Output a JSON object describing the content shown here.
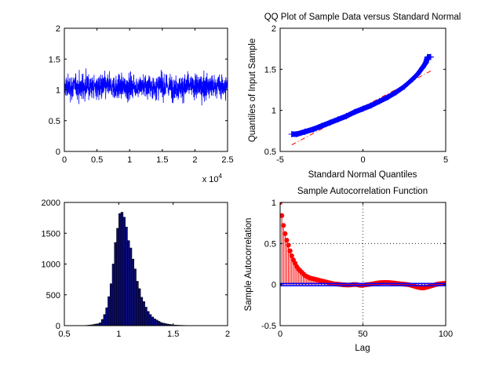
{
  "chart_data": [
    {
      "type": "line",
      "title": "",
      "xlabel": "",
      "ylabel": "",
      "xlim": [
        0,
        25000
      ],
      "ylim": [
        0,
        2
      ],
      "xticks": [
        "0",
        "0.5",
        "1",
        "1.5",
        "2",
        "2.5"
      ],
      "yticks": [
        "0",
        "0.5",
        "1",
        "1.5",
        "2"
      ],
      "x_multiplier": "x 10",
      "x_multiplier_exp": "4",
      "n_points": 25000,
      "series": [
        {
          "mean": 1.05,
          "spread": 0.1,
          "color": "#0000ff"
        }
      ]
    },
    {
      "type": "scatter",
      "title": "QQ Plot of Sample Data versus Standard Normal",
      "xlabel": "Standard Normal Quantiles",
      "ylabel": "Quantiles of Input Sample",
      "xlim": [
        -5,
        5
      ],
      "ylim": [
        0.5,
        2
      ],
      "xticks": [
        "-5",
        "0",
        "5"
      ],
      "yticks": [
        "0.5",
        "1",
        "1.5",
        "2"
      ],
      "marker": "+",
      "color": "#0000ff",
      "ref_line": {
        "x": [
          -4.3,
          4.1
        ],
        "y": [
          0.58,
          1.48
        ],
        "color": "#ff0000"
      },
      "points": [
        [
          -4.3,
          0.71
        ],
        [
          -4.0,
          0.71
        ],
        [
          -3.5,
          0.74
        ],
        [
          -3.0,
          0.77
        ],
        [
          -2.5,
          0.81
        ],
        [
          -2.0,
          0.85
        ],
        [
          -1.5,
          0.89
        ],
        [
          -1.0,
          0.93
        ],
        [
          -0.5,
          0.98
        ],
        [
          0.0,
          1.02
        ],
        [
          0.5,
          1.06
        ],
        [
          1.0,
          1.11
        ],
        [
          1.5,
          1.16
        ],
        [
          2.0,
          1.22
        ],
        [
          2.5,
          1.29
        ],
        [
          3.0,
          1.38
        ],
        [
          3.3,
          1.44
        ],
        [
          3.6,
          1.52
        ],
        [
          3.8,
          1.58
        ],
        [
          3.9,
          1.65
        ],
        [
          4.1,
          1.65
        ]
      ]
    },
    {
      "type": "bar",
      "title": "",
      "xlabel": "",
      "ylabel": "",
      "xlim": [
        0.5,
        2
      ],
      "ylim": [
        0,
        2000
      ],
      "xticks": [
        "0.5",
        "1",
        "1.5",
        "2"
      ],
      "yticks": [
        "0",
        "500",
        "1000",
        "1500",
        "2000"
      ],
      "bin_width": 0.02,
      "bar_color": "#0b0b7a",
      "bins": [
        [
          0.71,
          5
        ],
        [
          0.73,
          8
        ],
        [
          0.75,
          12
        ],
        [
          0.77,
          18
        ],
        [
          0.79,
          25
        ],
        [
          0.81,
          30
        ],
        [
          0.83,
          45
        ],
        [
          0.85,
          100
        ],
        [
          0.87,
          180
        ],
        [
          0.89,
          290
        ],
        [
          0.91,
          470
        ],
        [
          0.93,
          680
        ],
        [
          0.95,
          1000
        ],
        [
          0.97,
          1350
        ],
        [
          0.99,
          1580
        ],
        [
          1.01,
          1820
        ],
        [
          1.03,
          1840
        ],
        [
          1.05,
          1760
        ],
        [
          1.07,
          1600
        ],
        [
          1.09,
          1380
        ],
        [
          1.11,
          1260
        ],
        [
          1.13,
          1080
        ],
        [
          1.15,
          920
        ],
        [
          1.17,
          720
        ],
        [
          1.19,
          600
        ],
        [
          1.21,
          460
        ],
        [
          1.23,
          390
        ],
        [
          1.25,
          300
        ],
        [
          1.27,
          230
        ],
        [
          1.29,
          180
        ],
        [
          1.31,
          140
        ],
        [
          1.33,
          110
        ],
        [
          1.35,
          90
        ],
        [
          1.37,
          70
        ],
        [
          1.39,
          50
        ],
        [
          1.41,
          40
        ],
        [
          1.43,
          32
        ],
        [
          1.45,
          25
        ],
        [
          1.47,
          20
        ],
        [
          1.49,
          14
        ],
        [
          1.51,
          10
        ],
        [
          1.53,
          8
        ],
        [
          1.55,
          6
        ],
        [
          1.57,
          5
        ],
        [
          1.59,
          4
        ],
        [
          1.61,
          3
        ],
        [
          1.63,
          2
        ]
      ]
    },
    {
      "type": "line",
      "title": "Sample Autocorrelation Function",
      "xlabel": "Lag",
      "ylabel": "Sample Autocorrelation",
      "xlim": [
        0,
        100
      ],
      "ylim": [
        -0.5,
        1
      ],
      "xticks": [
        "0",
        "50",
        "100"
      ],
      "yticks": [
        "-0.5",
        "0",
        "0.5",
        "1"
      ],
      "grid": true,
      "stem_color": "#ff0000",
      "bound_color": "#0000ff",
      "confidence_bound": 0.013,
      "acf": [
        1.0,
        0.84,
        0.72,
        0.62,
        0.54,
        0.48,
        0.41,
        0.35,
        0.3,
        0.26,
        0.22,
        0.19,
        0.17,
        0.15,
        0.13,
        0.11,
        0.1,
        0.09,
        0.08,
        0.075,
        0.07,
        0.065,
        0.06,
        0.055,
        0.05,
        0.045,
        0.04,
        0.035,
        0.03,
        0.025,
        0.02,
        0.015,
        0.01,
        0.008,
        0.006,
        0.004,
        0.002,
        0.0,
        -0.002,
        -0.004,
        -0.005,
        -0.006,
        -0.005,
        -0.003,
        -0.001,
        0.0,
        0.0,
        -0.004,
        -0.008,
        -0.01,
        -0.008,
        -0.005,
        -0.002,
        0.0,
        0.002,
        0.005,
        0.008,
        0.012,
        0.016,
        0.02,
        0.022,
        0.024,
        0.025,
        0.026,
        0.026,
        0.025,
        0.024,
        0.022,
        0.02,
        0.018,
        0.015,
        0.012,
        0.01,
        0.008,
        0.006,
        0.004,
        0.002,
        0.0,
        -0.003,
        -0.008,
        -0.014,
        -0.02,
        -0.026,
        -0.032,
        -0.036,
        -0.04,
        -0.042,
        -0.04,
        -0.035,
        -0.03,
        -0.024,
        -0.018,
        -0.012,
        -0.006,
        0.0,
        0.004,
        0.008,
        0.01,
        0.012,
        0.014,
        0.015
      ]
    }
  ]
}
